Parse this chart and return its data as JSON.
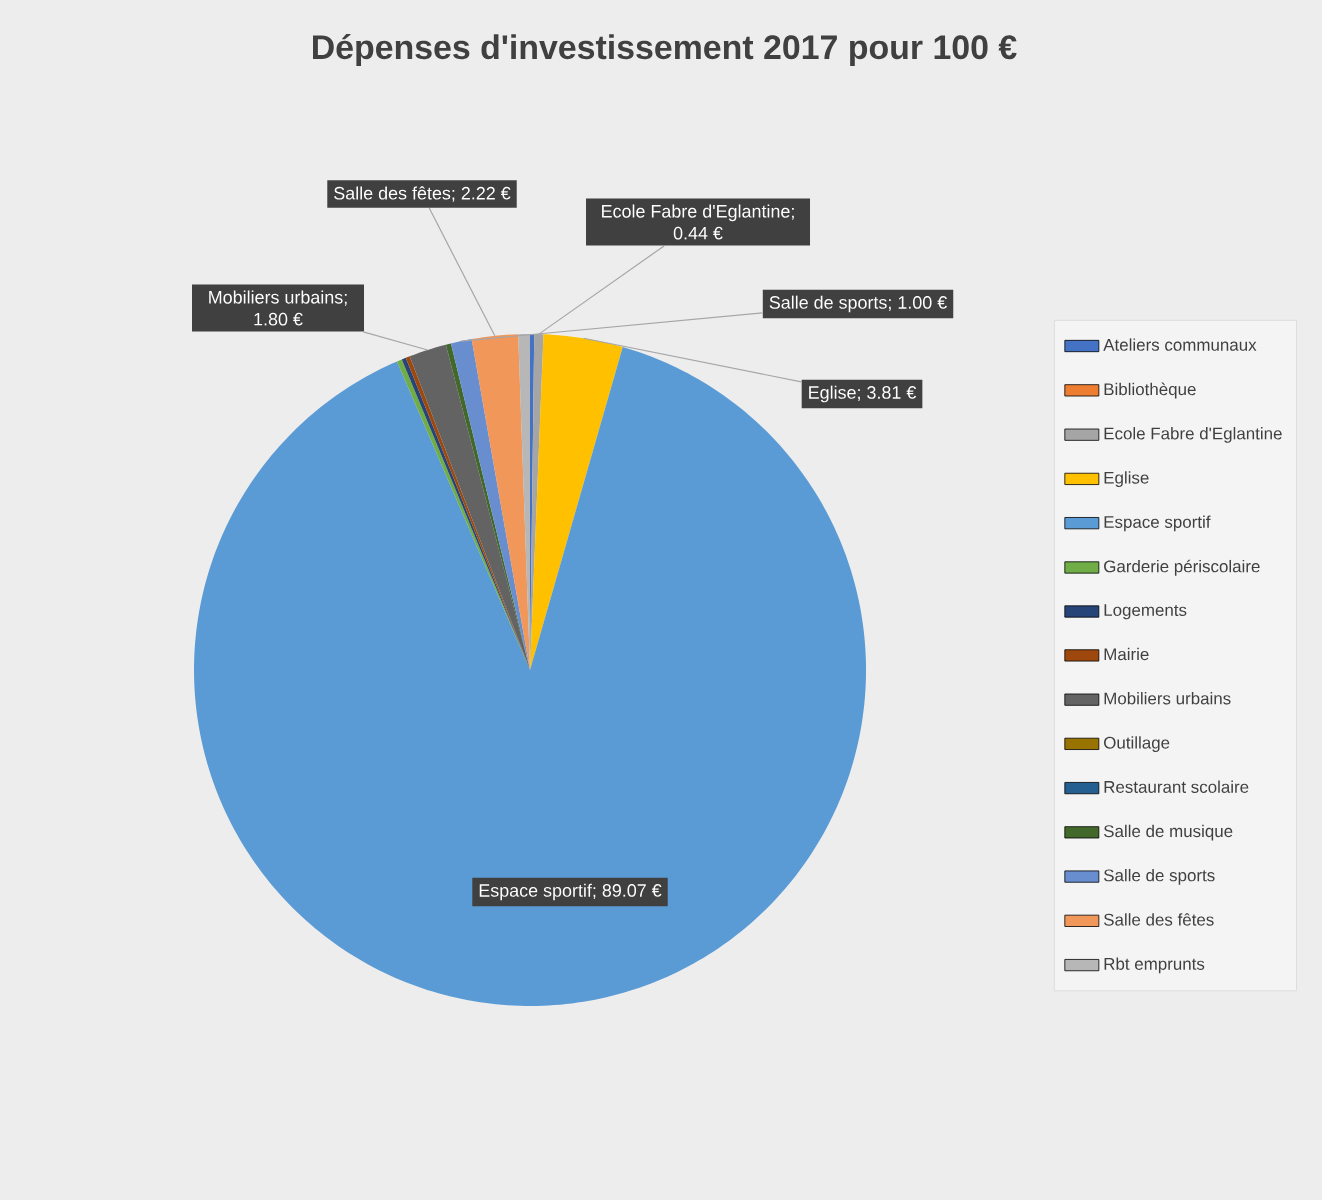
{
  "chart_data": {
    "type": "pie",
    "title": "Dépenses d'investissement 2017 pour 100 €",
    "categories": [
      "Ateliers communaux",
      "Bibliothèque",
      "Ecole Fabre d'Eglantine",
      "Eglise",
      "Espace sportif",
      "Garderie périscolaire",
      "Logements",
      "Mairie",
      "Mobiliers urbains",
      "Outillage",
      "Restaurant scolaire",
      "Salle de musique",
      "Salle de sports",
      "Salle des fêtes",
      "Rbt emprunts"
    ],
    "values": [
      0.2,
      0,
      0.44,
      3.81,
      89.07,
      0.25,
      0.2,
      0.2,
      1.8,
      0,
      0,
      0.25,
      1.0,
      2.22,
      0.56
    ],
    "colors": [
      "#4472c4",
      "#ed7d31",
      "#a5a5a5",
      "#ffc000",
      "#5b9bd5",
      "#70ad47",
      "#264478",
      "#9e480e",
      "#636363",
      "#997300",
      "#255e91",
      "#43682b",
      "#698ed0",
      "#f1975a",
      "#b7b7b7"
    ],
    "value_labels": [
      null,
      null,
      "Ecole Fabre d'Eglantine; 0.44 €",
      "Eglise; 3.81 €",
      "Espace sportif; 89.07 €",
      null,
      null,
      null,
      "Mobiliers urbains; 1.80 €",
      null,
      null,
      null,
      "Salle de sports; 1.00 €",
      "Salle des fêtes; 2.22 €",
      null
    ],
    "legend": "right"
  }
}
